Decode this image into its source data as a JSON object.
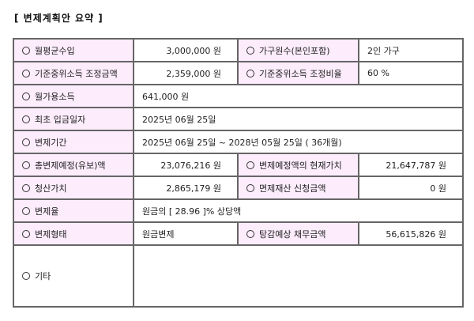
{
  "title": "[ 변제계획안 요약 ]",
  "rows": [
    {
      "l1": "월평균수입",
      "v1": "3,000,000 원",
      "l2": "가구원수(본인포함)",
      "v2": "2인 가구"
    },
    {
      "l1": "기준중위소득 조정금액",
      "v1": "2,359,000 원",
      "l2": "기준중위소득 조정비율",
      "v2": "60 %"
    },
    {
      "l1": "월가용소득",
      "v1": "641,000 원"
    },
    {
      "l1": "최초 입금일자",
      "v1": "2025년 06월 25일"
    },
    {
      "l1": "변제기간",
      "v1": "2025년 06월 25일 ~ 2028년 05월 25일 ( 36개월)"
    },
    {
      "l1": "총변제예정(유보)액",
      "v1": "23,076,216 원",
      "l2": "변제예정액의 현재가치",
      "v2": "21,647,787 원"
    },
    {
      "l1": "청산가치",
      "v1": "2,865,179 원",
      "l2": "면제재산 신청금액",
      "v2": "0 원"
    },
    {
      "l1": "변제율",
      "v1": "원금의 [ 28.96 ]% 상당액"
    },
    {
      "l1": "변제형태",
      "v1": "원금변제",
      "l2": "탕감예상 채무금액",
      "v2": "56,615,826 원"
    },
    {
      "l1": "기타",
      "v1": ""
    }
  ]
}
